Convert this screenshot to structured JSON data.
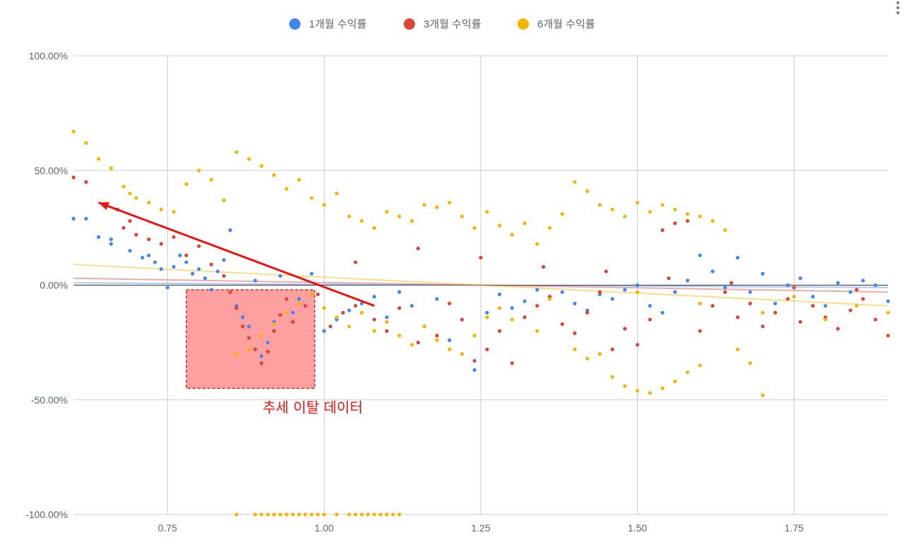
{
  "menu": {
    "icon": "more-vert-icon"
  },
  "chart_data": {
    "type": "scatter",
    "title": "",
    "xlabel": "",
    "ylabel": "",
    "xlim": [
      0.6,
      1.9
    ],
    "ylim": [
      -100,
      100
    ],
    "x_ticks": [
      {
        "value": 0.75,
        "label": "0.75"
      },
      {
        "value": 1.0,
        "label": "1.00"
      },
      {
        "value": 1.25,
        "label": "1.25"
      },
      {
        "value": 1.5,
        "label": "1.50"
      },
      {
        "value": 1.75,
        "label": "1.75"
      }
    ],
    "y_ticks": [
      {
        "value": 100,
        "label": "100.00%"
      },
      {
        "value": 50,
        "label": "50.00%"
      },
      {
        "value": 0,
        "label": "0.00%"
      },
      {
        "value": -50,
        "label": "-50.00%"
      },
      {
        "value": -100,
        "label": "-100.00%"
      }
    ],
    "grid": true,
    "legend_position": "top",
    "series": [
      {
        "name": "1개월 수익률",
        "color": "#4285f4",
        "trendline": {
          "y_start": 1,
          "y_end": -1
        },
        "points": [
          [
            0.6,
            29
          ],
          [
            0.62,
            29
          ],
          [
            0.64,
            21
          ],
          [
            0.66,
            18
          ],
          [
            0.66,
            20
          ],
          [
            0.69,
            15
          ],
          [
            0.71,
            12
          ],
          [
            0.72,
            13
          ],
          [
            0.73,
            10
          ],
          [
            0.74,
            7
          ],
          [
            0.75,
            -1
          ],
          [
            0.76,
            8
          ],
          [
            0.77,
            13
          ],
          [
            0.78,
            10
          ],
          [
            0.79,
            5
          ],
          [
            0.8,
            7
          ],
          [
            0.81,
            3
          ],
          [
            0.82,
            -2
          ],
          [
            0.83,
            6
          ],
          [
            0.84,
            11
          ],
          [
            0.85,
            24
          ],
          [
            0.86,
            -9
          ],
          [
            0.87,
            -14
          ],
          [
            0.88,
            -18
          ],
          [
            0.89,
            2
          ],
          [
            0.9,
            -31
          ],
          [
            0.91,
            -25
          ],
          [
            0.92,
            -16
          ],
          [
            0.93,
            4
          ],
          [
            0.95,
            -12
          ],
          [
            0.96,
            -6
          ],
          [
            0.98,
            5
          ],
          [
            1.0,
            -20
          ],
          [
            1.02,
            -15
          ],
          [
            1.04,
            -11
          ],
          [
            1.06,
            -8
          ],
          [
            1.08,
            -5
          ],
          [
            1.1,
            -14
          ],
          [
            1.12,
            -3
          ],
          [
            1.14,
            -9
          ],
          [
            1.16,
            -18
          ],
          [
            1.18,
            -6
          ],
          [
            1.2,
            -24
          ],
          [
            1.22,
            -30
          ],
          [
            1.24,
            -37
          ],
          [
            1.26,
            -12
          ],
          [
            1.28,
            -4
          ],
          [
            1.3,
            -10
          ],
          [
            1.32,
            -7
          ],
          [
            1.34,
            -2
          ],
          [
            1.36,
            -5
          ],
          [
            1.38,
            -3
          ],
          [
            1.4,
            -8
          ],
          [
            1.42,
            -11
          ],
          [
            1.44,
            -4
          ],
          [
            1.46,
            -6
          ],
          [
            1.48,
            -2
          ],
          [
            1.5,
            0
          ],
          [
            1.52,
            -9
          ],
          [
            1.54,
            -12
          ],
          [
            1.56,
            -3
          ],
          [
            1.58,
            2
          ],
          [
            1.6,
            13
          ],
          [
            1.62,
            6
          ],
          [
            1.64,
            -1
          ],
          [
            1.66,
            12
          ],
          [
            1.68,
            -3
          ],
          [
            1.7,
            5
          ],
          [
            1.72,
            -8
          ],
          [
            1.74,
            0
          ],
          [
            1.76,
            3
          ],
          [
            1.78,
            -5
          ],
          [
            1.8,
            -9
          ],
          [
            1.82,
            1
          ],
          [
            1.84,
            -3
          ],
          [
            1.86,
            2
          ],
          [
            1.88,
            0
          ],
          [
            1.9,
            -7
          ]
        ]
      },
      {
        "name": "3개월 수익률",
        "color": "#db4437",
        "trendline": {
          "y_start": 3,
          "y_end": -3
        },
        "points": [
          [
            0.6,
            47
          ],
          [
            0.62,
            45
          ],
          [
            0.65,
            35
          ],
          [
            0.67,
            33
          ],
          [
            0.68,
            25
          ],
          [
            0.69,
            28
          ],
          [
            0.7,
            22
          ],
          [
            0.72,
            20
          ],
          [
            0.74,
            18
          ],
          [
            0.76,
            21
          ],
          [
            0.78,
            13
          ],
          [
            0.8,
            17
          ],
          [
            0.82,
            9
          ],
          [
            0.84,
            4
          ],
          [
            0.85,
            -3
          ],
          [
            0.86,
            -10
          ],
          [
            0.87,
            -18
          ],
          [
            0.88,
            -23
          ],
          [
            0.89,
            -28
          ],
          [
            0.9,
            -34
          ],
          [
            0.91,
            -29
          ],
          [
            0.92,
            -20
          ],
          [
            0.93,
            -13
          ],
          [
            0.94,
            -6
          ],
          [
            0.95,
            -16
          ],
          [
            0.97,
            -9
          ],
          [
            0.99,
            -4
          ],
          [
            1.01,
            -18
          ],
          [
            1.03,
            -12
          ],
          [
            1.05,
            -9
          ],
          [
            1.08,
            -15
          ],
          [
            1.1,
            -20
          ],
          [
            1.12,
            -10
          ],
          [
            1.15,
            -25
          ],
          [
            1.18,
            -22
          ],
          [
            1.2,
            -8
          ],
          [
            1.22,
            -15
          ],
          [
            1.24,
            -33
          ],
          [
            1.26,
            -28
          ],
          [
            1.28,
            -20
          ],
          [
            1.3,
            -34
          ],
          [
            1.32,
            -14
          ],
          [
            1.34,
            -9
          ],
          [
            1.36,
            -5
          ],
          [
            1.38,
            -17
          ],
          [
            1.4,
            -21
          ],
          [
            1.42,
            -12
          ],
          [
            1.44,
            -3
          ],
          [
            1.46,
            -28
          ],
          [
            1.48,
            -19
          ],
          [
            1.5,
            -26
          ],
          [
            1.52,
            -15
          ],
          [
            1.54,
            24
          ],
          [
            1.56,
            27
          ],
          [
            1.58,
            28
          ],
          [
            1.6,
            -20
          ],
          [
            1.62,
            -9
          ],
          [
            1.64,
            -3
          ],
          [
            1.66,
            -14
          ],
          [
            1.68,
            -8
          ],
          [
            1.7,
            -18
          ],
          [
            1.72,
            -12
          ],
          [
            1.74,
            -6
          ],
          [
            1.76,
            -16
          ],
          [
            1.78,
            -9
          ],
          [
            1.8,
            -14
          ],
          [
            1.82,
            -19
          ],
          [
            1.84,
            -11
          ],
          [
            1.86,
            -6
          ],
          [
            1.88,
            -15
          ],
          [
            1.9,
            -22
          ],
          [
            1.05,
            10
          ],
          [
            1.15,
            16
          ],
          [
            1.25,
            12
          ],
          [
            1.35,
            8
          ],
          [
            1.45,
            6
          ],
          [
            1.55,
            3
          ],
          [
            1.65,
            1
          ],
          [
            1.75,
            -1
          ],
          [
            1.85,
            -2
          ]
        ]
      },
      {
        "name": "6개월 수익률",
        "color": "#f4b400",
        "trendline": {
          "y_start": 9,
          "y_end": -9
        },
        "points": [
          [
            0.6,
            67
          ],
          [
            0.62,
            62
          ],
          [
            0.64,
            55
          ],
          [
            0.66,
            51
          ],
          [
            0.68,
            43
          ],
          [
            0.69,
            40
          ],
          [
            0.7,
            38
          ],
          [
            0.72,
            36
          ],
          [
            0.74,
            33
          ],
          [
            0.76,
            32
          ],
          [
            0.78,
            44
          ],
          [
            0.8,
            50
          ],
          [
            0.82,
            46
          ],
          [
            0.84,
            37
          ],
          [
            0.86,
            58
          ],
          [
            0.88,
            55
          ],
          [
            0.9,
            52
          ],
          [
            0.92,
            48
          ],
          [
            0.94,
            42
          ],
          [
            0.96,
            46
          ],
          [
            0.98,
            38
          ],
          [
            1.0,
            35
          ],
          [
            1.02,
            40
          ],
          [
            1.04,
            30
          ],
          [
            1.06,
            28
          ],
          [
            1.08,
            25
          ],
          [
            1.1,
            32
          ],
          [
            1.12,
            30
          ],
          [
            1.14,
            28
          ],
          [
            1.16,
            35
          ],
          [
            1.18,
            34
          ],
          [
            1.2,
            36
          ],
          [
            1.22,
            30
          ],
          [
            1.24,
            25
          ],
          [
            1.26,
            32
          ],
          [
            1.28,
            26
          ],
          [
            1.3,
            22
          ],
          [
            1.32,
            27
          ],
          [
            1.34,
            18
          ],
          [
            1.36,
            25
          ],
          [
            1.38,
            31
          ],
          [
            1.4,
            45
          ],
          [
            1.42,
            41
          ],
          [
            1.44,
            35
          ],
          [
            1.46,
            33
          ],
          [
            1.48,
            30
          ],
          [
            1.5,
            36
          ],
          [
            1.52,
            32
          ],
          [
            1.54,
            35
          ],
          [
            1.56,
            33
          ],
          [
            1.58,
            31
          ],
          [
            1.6,
            30
          ],
          [
            1.62,
            28
          ],
          [
            1.64,
            24
          ],
          [
            1.66,
            -28
          ],
          [
            1.68,
            -34
          ],
          [
            1.7,
            -48
          ],
          [
            1.46,
            -40
          ],
          [
            1.48,
            -44
          ],
          [
            1.5,
            -46
          ],
          [
            1.52,
            -47
          ],
          [
            1.54,
            -45
          ],
          [
            1.56,
            -42
          ],
          [
            1.58,
            -38
          ],
          [
            1.6,
            -35
          ],
          [
            1.42,
            -32
          ],
          [
            1.44,
            -30
          ],
          [
            1.4,
            -28
          ],
          [
            1.34,
            -20
          ],
          [
            1.3,
            -15
          ],
          [
            0.86,
            -30
          ],
          [
            0.88,
            -28
          ],
          [
            0.9,
            -22
          ],
          [
            0.92,
            -17
          ],
          [
            0.94,
            -12
          ],
          [
            0.96,
            -8
          ],
          [
            0.98,
            -4
          ],
          [
            1.0,
            -10
          ],
          [
            1.02,
            -14
          ],
          [
            1.04,
            -18
          ],
          [
            1.06,
            -12
          ],
          [
            1.08,
            -20
          ],
          [
            1.1,
            -16
          ],
          [
            1.12,
            -22
          ],
          [
            1.14,
            -26
          ],
          [
            1.16,
            -18
          ],
          [
            1.18,
            -24
          ],
          [
            1.2,
            -28
          ],
          [
            1.22,
            -30
          ],
          [
            1.24,
            -22
          ],
          [
            1.26,
            -14
          ],
          [
            1.28,
            -10
          ],
          [
            1.36,
            -6
          ],
          [
            1.5,
            -3
          ],
          [
            1.6,
            -8
          ],
          [
            1.7,
            -12
          ],
          [
            1.75,
            -5
          ],
          [
            1.8,
            -15
          ],
          [
            1.85,
            -9
          ],
          [
            1.9,
            -12
          ],
          [
            0.86,
            -100
          ],
          [
            0.89,
            -100
          ],
          [
            0.9,
            -100
          ],
          [
            0.91,
            -100
          ],
          [
            0.92,
            -100
          ],
          [
            0.93,
            -100
          ],
          [
            0.94,
            -100
          ],
          [
            0.95,
            -100
          ],
          [
            0.96,
            -100
          ],
          [
            0.97,
            -100
          ],
          [
            0.98,
            -100
          ],
          [
            0.99,
            -100
          ],
          [
            1.0,
            -100
          ],
          [
            1.02,
            -100
          ],
          [
            1.04,
            -100
          ],
          [
            1.05,
            -100
          ],
          [
            1.06,
            -100
          ],
          [
            1.07,
            -100
          ],
          [
            1.08,
            -100
          ],
          [
            1.09,
            -100
          ],
          [
            1.1,
            -100
          ],
          [
            1.11,
            -100
          ],
          [
            1.12,
            -100
          ]
        ]
      }
    ],
    "annotations": [
      {
        "type": "arrow",
        "from": [
          1.08,
          -9
        ],
        "to": [
          0.64,
          36
        ],
        "color": "#ee1111"
      },
      {
        "type": "region",
        "x_range": [
          0.78,
          0.985
        ],
        "y_range": [
          -45,
          -2
        ],
        "color": "#ff8080",
        "label": "추세 이탈 데이터"
      }
    ]
  }
}
